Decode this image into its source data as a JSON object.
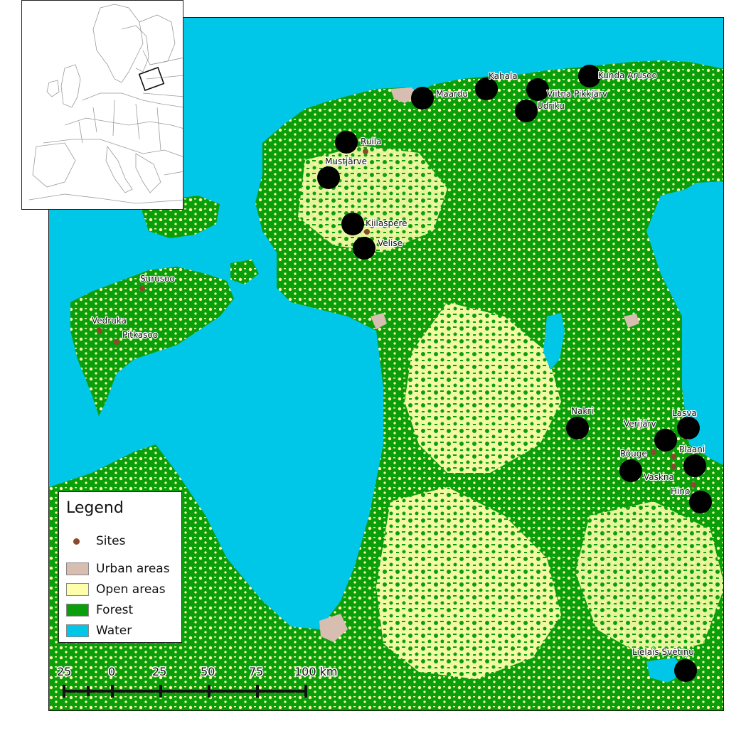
{
  "legend": {
    "title": "Legend",
    "items": [
      {
        "label": "Sites",
        "kind": "point",
        "color": "#8b4a2b"
      },
      {
        "label": "Urban areas",
        "kind": "fill",
        "color": "#d8bdb1"
      },
      {
        "label": "Open areas",
        "kind": "fill",
        "color": "#fdfdaa"
      },
      {
        "label": "Forest",
        "kind": "fill",
        "color": "#0a9e0a"
      },
      {
        "label": "Water",
        "kind": "fill",
        "color": "#00c6e8"
      }
    ]
  },
  "scale_bar": {
    "ticks": [
      "25",
      "0",
      "25",
      "50",
      "75",
      "100 km"
    ]
  },
  "sites": [
    {
      "name": "Maardu"
    },
    {
      "name": "Kahala"
    },
    {
      "name": "Viitna Pikkjärv"
    },
    {
      "name": "Kunda Arusoo"
    },
    {
      "name": "Udriku"
    },
    {
      "name": "Ruila"
    },
    {
      "name": "Mustjärve"
    },
    {
      "name": "Kiilaspere"
    },
    {
      "name": "Velise"
    },
    {
      "name": "Surusoo"
    },
    {
      "name": "Vedruka"
    },
    {
      "name": "Pitkasoo"
    },
    {
      "name": "Nakri"
    },
    {
      "name": "Verijärv"
    },
    {
      "name": "Lasva"
    },
    {
      "name": "Rõuge"
    },
    {
      "name": "Plaani"
    },
    {
      "name": "Vaskna"
    },
    {
      "name": "Hino"
    },
    {
      "name": "Lielais Svētiņu"
    }
  ],
  "colors": {
    "water": "#00c6e8",
    "forest": "#0a9e0a",
    "open": "#fdfdaa",
    "urban": "#d8bdb1",
    "site": "#8b4a2b",
    "large_marker": "#000000"
  }
}
